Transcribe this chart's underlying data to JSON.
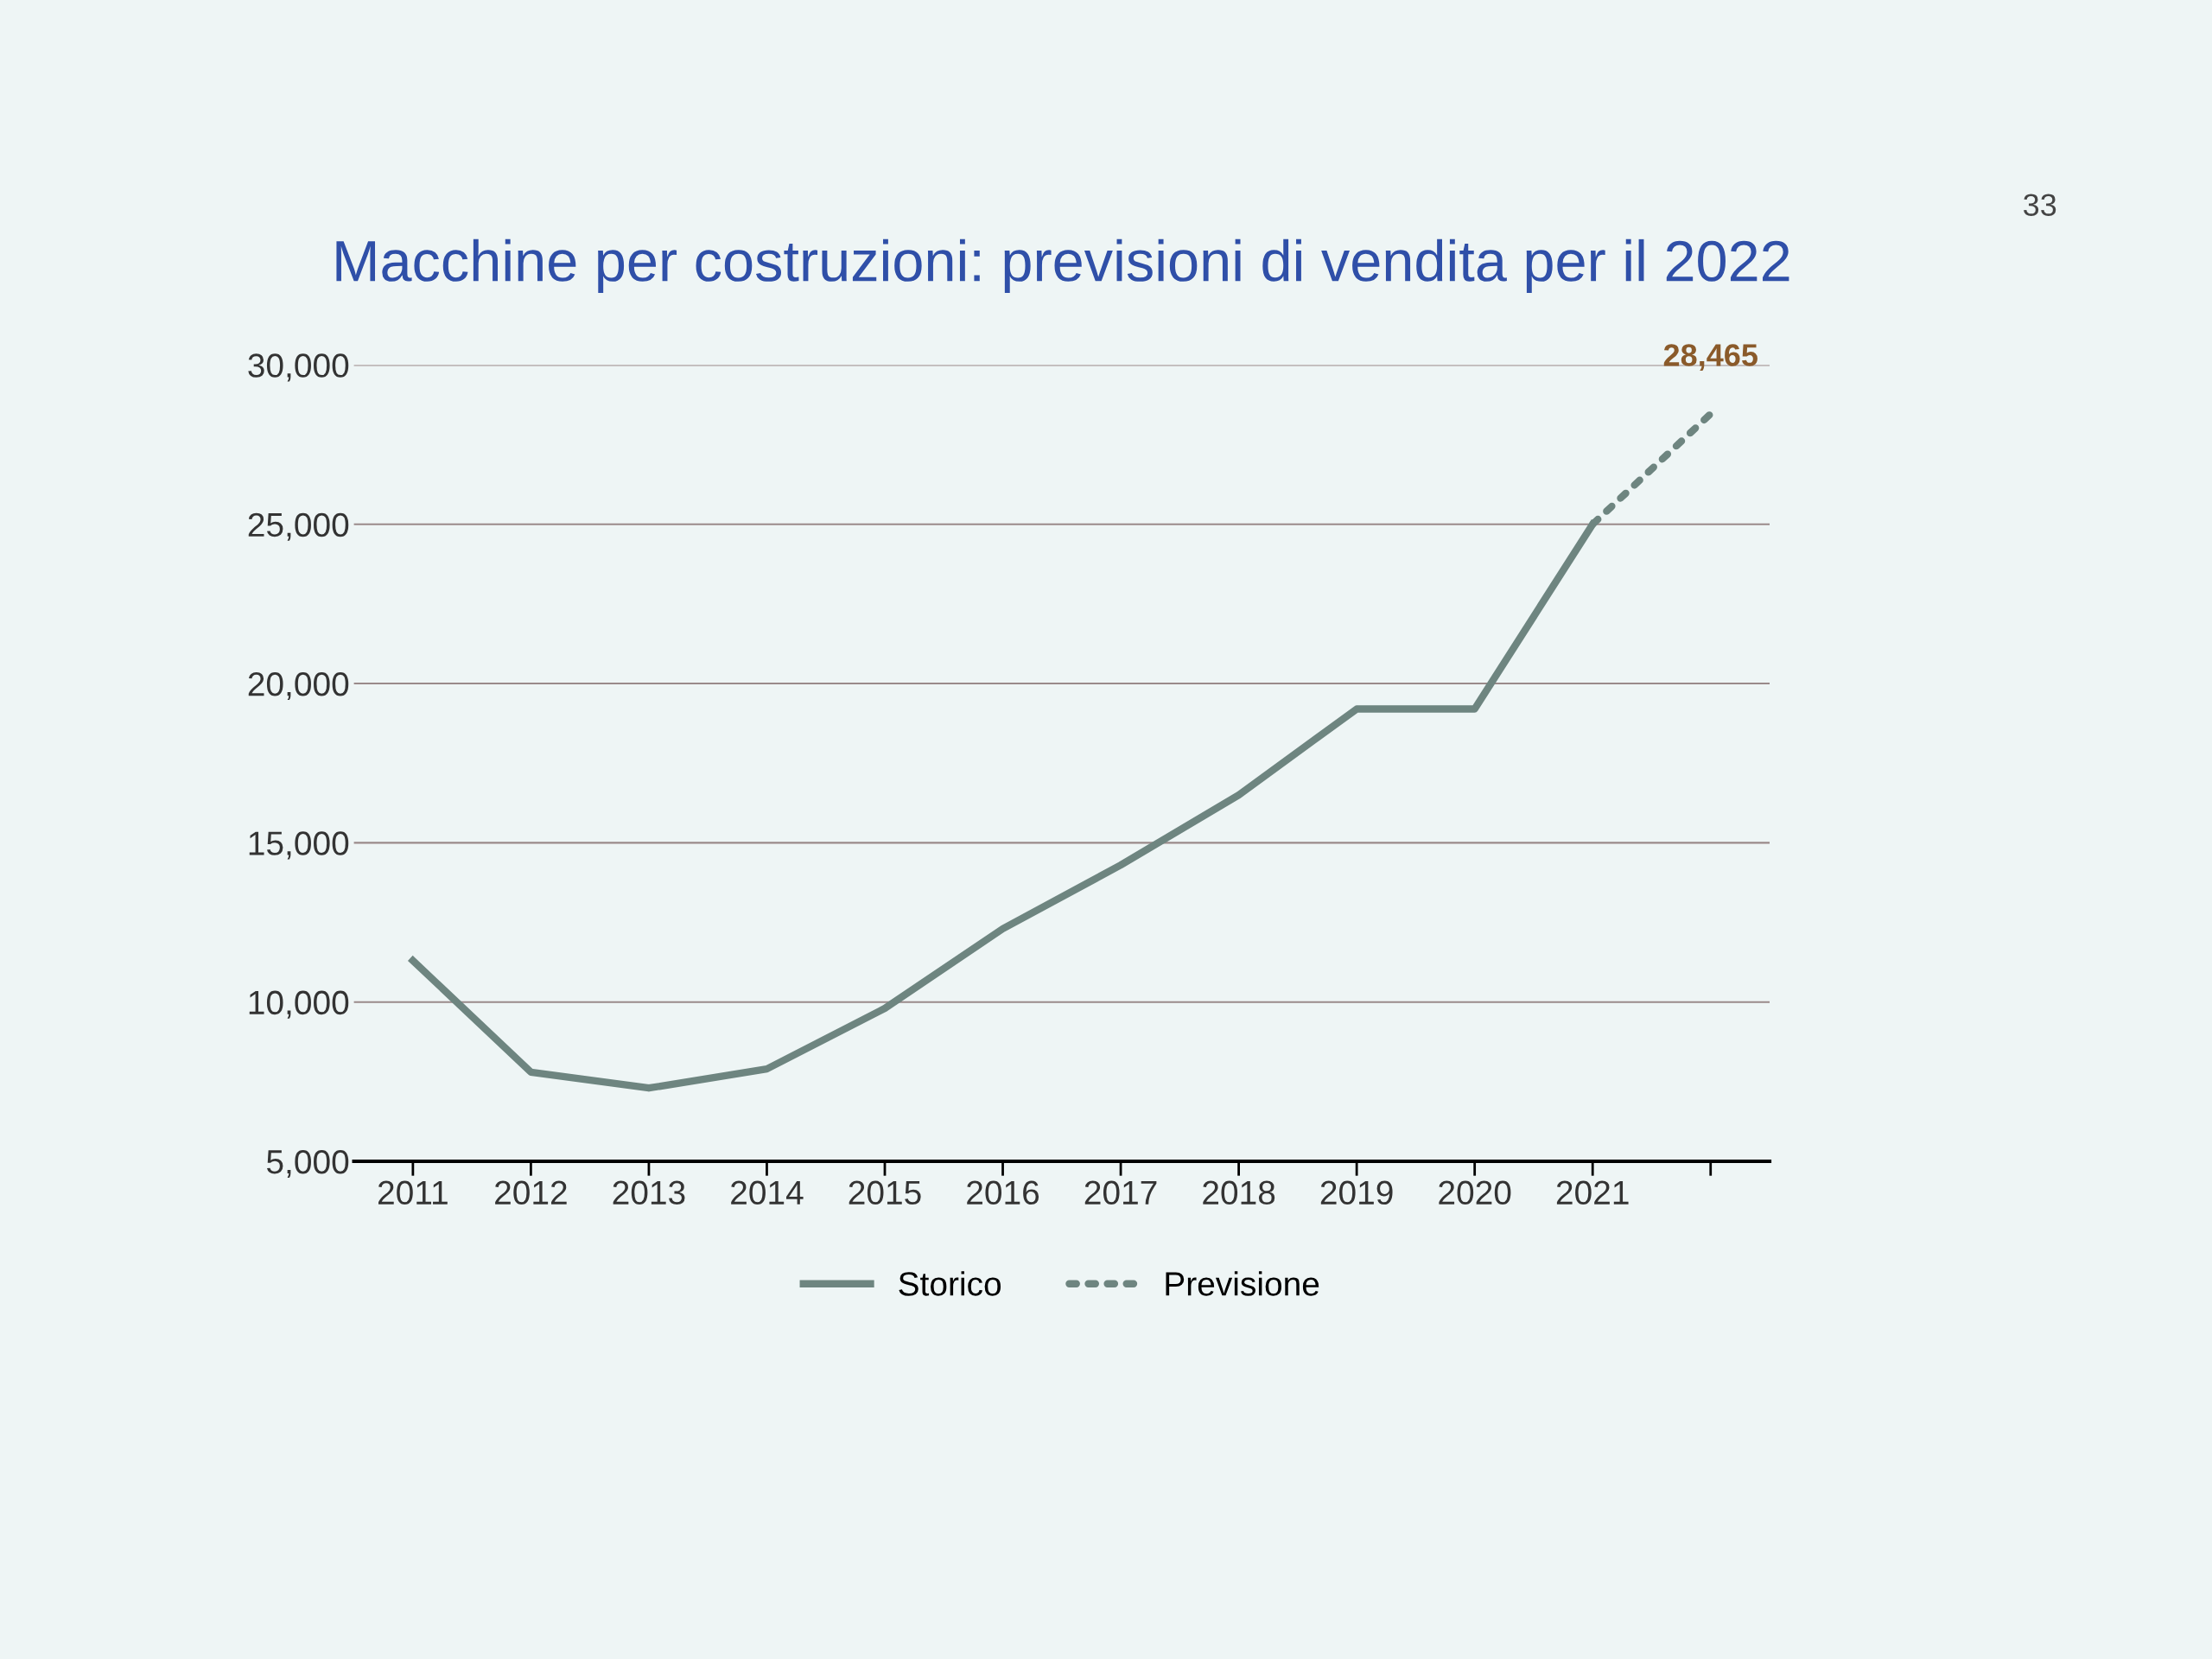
{
  "chart_data": {
    "type": "line",
    "title": "Macchine per costruzioni: previsioni di vendita per il 2022",
    "annotations": [
      "33"
    ],
    "categories": [
      "2011",
      "2012",
      "2013",
      "2014",
      "2015",
      "2016",
      "2017",
      "2018",
      "2019",
      "2020",
      "2021",
      null
    ],
    "series": [
      {
        "name": "Storico",
        "color": "#6e8580",
        "line_style": "solid",
        "values": [
          11300,
          7800,
          7300,
          7900,
          9800,
          12300,
          14300,
          16500,
          19200,
          19200,
          25000,
          null
        ]
      },
      {
        "name": "Previsione",
        "color": "#6e8580",
        "line_style": "dotted",
        "values": [
          null,
          null,
          null,
          null,
          null,
          null,
          null,
          null,
          null,
          null,
          25000,
          28465
        ],
        "value_labels": [
          null,
          null,
          null,
          null,
          null,
          null,
          null,
          null,
          null,
          null,
          null,
          "28,465"
        ]
      }
    ],
    "ylim": [
      5000,
      30000
    ],
    "yticks": [
      {
        "value": 5000,
        "label": "5,000"
      },
      {
        "value": 10000,
        "label": "10,000"
      },
      {
        "value": 15000,
        "label": "15,000"
      },
      {
        "value": 20000,
        "label": "20,000"
      },
      {
        "value": 25000,
        "label": "25,000"
      },
      {
        "value": 30000,
        "label": "30,000"
      }
    ],
    "grid": "y",
    "legend": "bottom",
    "marker": "none"
  }
}
